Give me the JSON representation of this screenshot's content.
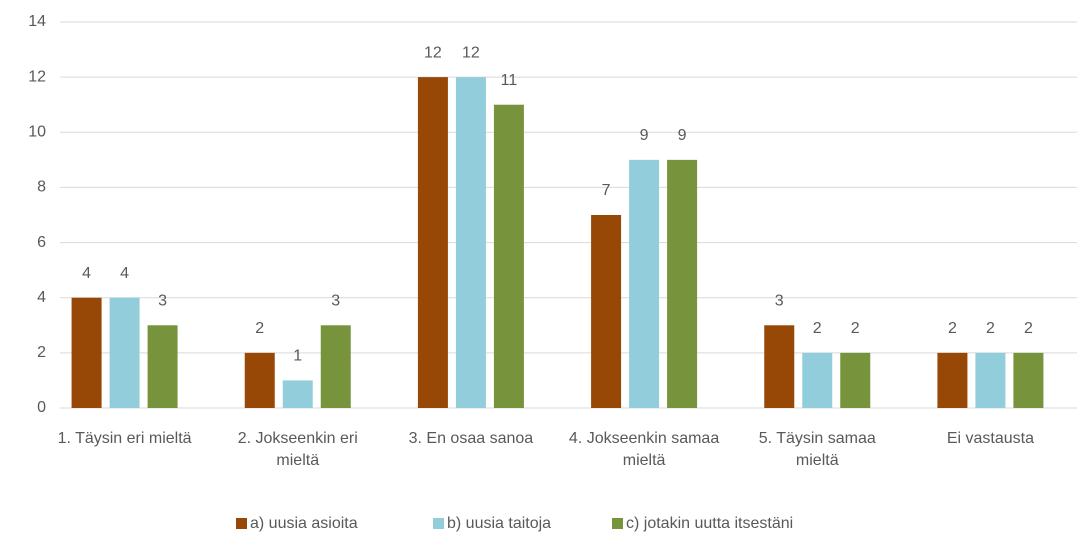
{
  "chart_data": {
    "type": "bar",
    "categories": [
      "1. Täysin eri mieltä",
      "2. Jokseenkin eri mieltä",
      "3. En osaa sanoa",
      "4. Jokseenkin samaa mieltä",
      "5. Täysin samaa mieltä",
      "Ei vastausta"
    ],
    "series": [
      {
        "name": "a) uusia asioita",
        "color": "#974706",
        "values": [
          4,
          2,
          12,
          7,
          3,
          2
        ]
      },
      {
        "name": "b) uusia taitoja",
        "color": "#92cddc",
        "values": [
          4,
          1,
          12,
          9,
          2,
          2
        ]
      },
      {
        "name": "c) jotakin uutta itsestäni",
        "color": "#77933c",
        "values": [
          3,
          3,
          11,
          9,
          2,
          2
        ]
      }
    ],
    "ylim": [
      0,
      14
    ],
    "yticks": [
      0,
      2,
      4,
      6,
      8,
      10,
      12,
      14
    ],
    "grid": true,
    "legend": "bottom"
  }
}
